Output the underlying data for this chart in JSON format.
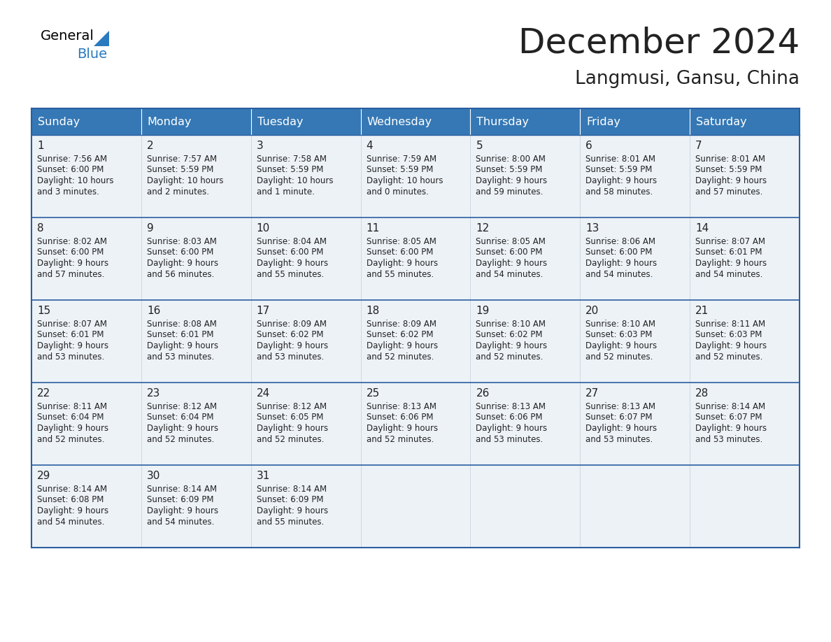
{
  "title": "December 2024",
  "subtitle": "Langmusi, Gansu, China",
  "header_bg_color": "#3578b5",
  "header_text_color": "#ffffff",
  "cell_bg_even": "#edf2f7",
  "cell_bg_odd": "#edf2f7",
  "border_color": "#2a5fa0",
  "text_color": "#222222",
  "days_of_week": [
    "Sunday",
    "Monday",
    "Tuesday",
    "Wednesday",
    "Thursday",
    "Friday",
    "Saturday"
  ],
  "weeks": [
    [
      {
        "day": "1",
        "sunrise": "7:56 AM",
        "sunset": "6:00 PM",
        "dl1": "10 hours",
        "dl2": "and 3 minutes."
      },
      {
        "day": "2",
        "sunrise": "7:57 AM",
        "sunset": "5:59 PM",
        "dl1": "10 hours",
        "dl2": "and 2 minutes."
      },
      {
        "day": "3",
        "sunrise": "7:58 AM",
        "sunset": "5:59 PM",
        "dl1": "10 hours",
        "dl2": "and 1 minute."
      },
      {
        "day": "4",
        "sunrise": "7:59 AM",
        "sunset": "5:59 PM",
        "dl1": "10 hours",
        "dl2": "and 0 minutes."
      },
      {
        "day": "5",
        "sunrise": "8:00 AM",
        "sunset": "5:59 PM",
        "dl1": "9 hours",
        "dl2": "and 59 minutes."
      },
      {
        "day": "6",
        "sunrise": "8:01 AM",
        "sunset": "5:59 PM",
        "dl1": "9 hours",
        "dl2": "and 58 minutes."
      },
      {
        "day": "7",
        "sunrise": "8:01 AM",
        "sunset": "5:59 PM",
        "dl1": "9 hours",
        "dl2": "and 57 minutes."
      }
    ],
    [
      {
        "day": "8",
        "sunrise": "8:02 AM",
        "sunset": "6:00 PM",
        "dl1": "9 hours",
        "dl2": "and 57 minutes."
      },
      {
        "day": "9",
        "sunrise": "8:03 AM",
        "sunset": "6:00 PM",
        "dl1": "9 hours",
        "dl2": "and 56 minutes."
      },
      {
        "day": "10",
        "sunrise": "8:04 AM",
        "sunset": "6:00 PM",
        "dl1": "9 hours",
        "dl2": "and 55 minutes."
      },
      {
        "day": "11",
        "sunrise": "8:05 AM",
        "sunset": "6:00 PM",
        "dl1": "9 hours",
        "dl2": "and 55 minutes."
      },
      {
        "day": "12",
        "sunrise": "8:05 AM",
        "sunset": "6:00 PM",
        "dl1": "9 hours",
        "dl2": "and 54 minutes."
      },
      {
        "day": "13",
        "sunrise": "8:06 AM",
        "sunset": "6:00 PM",
        "dl1": "9 hours",
        "dl2": "and 54 minutes."
      },
      {
        "day": "14",
        "sunrise": "8:07 AM",
        "sunset": "6:01 PM",
        "dl1": "9 hours",
        "dl2": "and 54 minutes."
      }
    ],
    [
      {
        "day": "15",
        "sunrise": "8:07 AM",
        "sunset": "6:01 PM",
        "dl1": "9 hours",
        "dl2": "and 53 minutes."
      },
      {
        "day": "16",
        "sunrise": "8:08 AM",
        "sunset": "6:01 PM",
        "dl1": "9 hours",
        "dl2": "and 53 minutes."
      },
      {
        "day": "17",
        "sunrise": "8:09 AM",
        "sunset": "6:02 PM",
        "dl1": "9 hours",
        "dl2": "and 53 minutes."
      },
      {
        "day": "18",
        "sunrise": "8:09 AM",
        "sunset": "6:02 PM",
        "dl1": "9 hours",
        "dl2": "and 52 minutes."
      },
      {
        "day": "19",
        "sunrise": "8:10 AM",
        "sunset": "6:02 PM",
        "dl1": "9 hours",
        "dl2": "and 52 minutes."
      },
      {
        "day": "20",
        "sunrise": "8:10 AM",
        "sunset": "6:03 PM",
        "dl1": "9 hours",
        "dl2": "and 52 minutes."
      },
      {
        "day": "21",
        "sunrise": "8:11 AM",
        "sunset": "6:03 PM",
        "dl1": "9 hours",
        "dl2": "and 52 minutes."
      }
    ],
    [
      {
        "day": "22",
        "sunrise": "8:11 AM",
        "sunset": "6:04 PM",
        "dl1": "9 hours",
        "dl2": "and 52 minutes."
      },
      {
        "day": "23",
        "sunrise": "8:12 AM",
        "sunset": "6:04 PM",
        "dl1": "9 hours",
        "dl2": "and 52 minutes."
      },
      {
        "day": "24",
        "sunrise": "8:12 AM",
        "sunset": "6:05 PM",
        "dl1": "9 hours",
        "dl2": "and 52 minutes."
      },
      {
        "day": "25",
        "sunrise": "8:13 AM",
        "sunset": "6:06 PM",
        "dl1": "9 hours",
        "dl2": "and 52 minutes."
      },
      {
        "day": "26",
        "sunrise": "8:13 AM",
        "sunset": "6:06 PM",
        "dl1": "9 hours",
        "dl2": "and 53 minutes."
      },
      {
        "day": "27",
        "sunrise": "8:13 AM",
        "sunset": "6:07 PM",
        "dl1": "9 hours",
        "dl2": "and 53 minutes."
      },
      {
        "day": "28",
        "sunrise": "8:14 AM",
        "sunset": "6:07 PM",
        "dl1": "9 hours",
        "dl2": "and 53 minutes."
      }
    ],
    [
      {
        "day": "29",
        "sunrise": "8:14 AM",
        "sunset": "6:08 PM",
        "dl1": "9 hours",
        "dl2": "and 54 minutes."
      },
      {
        "day": "30",
        "sunrise": "8:14 AM",
        "sunset": "6:09 PM",
        "dl1": "9 hours",
        "dl2": "and 54 minutes."
      },
      {
        "day": "31",
        "sunrise": "8:14 AM",
        "sunset": "6:09 PM",
        "dl1": "9 hours",
        "dl2": "and 55 minutes."
      },
      null,
      null,
      null,
      null
    ]
  ]
}
